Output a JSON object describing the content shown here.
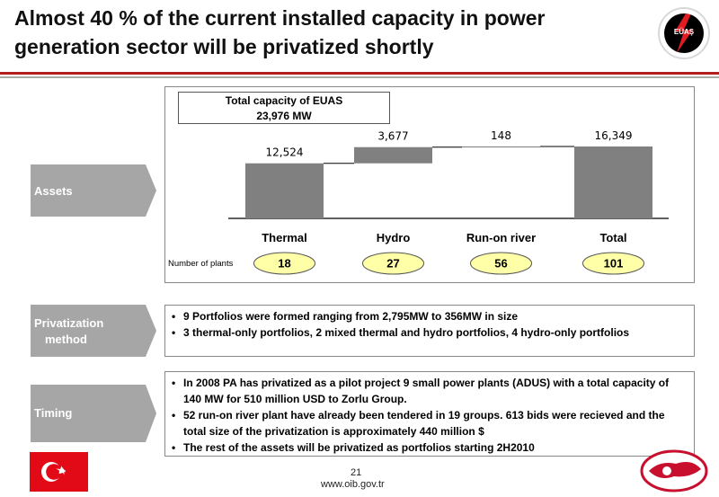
{
  "header": {
    "title_line1": "Almost 40 % of the current installed capacity in power",
    "title_line2": "generation sector will be privatized shortly",
    "logo_text": "EÜAŞ"
  },
  "sections": {
    "assets": "Assets",
    "privatization_line1": "Privatization",
    "privatization_line2": "method",
    "timing": "Timing"
  },
  "total_box": {
    "line1": "Total capacity of EUAS",
    "line2": "23,976 MW"
  },
  "chart_data": {
    "type": "bar",
    "categories": [
      "Thermal",
      "Hydro",
      "Run-on river",
      "Total"
    ],
    "values": [
      12524,
      3677,
      148,
      16349
    ],
    "value_labels": [
      "12,524",
      "3,677",
      "148",
      "16,349"
    ],
    "waterfall": true,
    "title": "",
    "xlabel": "",
    "ylabel": "",
    "ylim": [
      0,
      18000
    ],
    "grid": false,
    "colors": [
      "#808080",
      "#808080",
      "#808080",
      "#808080"
    ]
  },
  "plants": {
    "label": "Number of plants",
    "counts": [
      "18",
      "27",
      "56",
      "101"
    ]
  },
  "privatization_bullets": [
    "9 Portfolios were formed ranging from 2,795MW to 356MW in size",
    "3 thermal-only portfolios, 2 mixed thermal and hydro portfolios, 4 hydro-only portfolios"
  ],
  "timing_bullets": [
    "In 2008 PA has privatized as a pilot project 9 small power plants (ADUS) with a total capacity of 140 MW for 510 million USD to Zorlu Group.",
    "52 run-on river plant have already been tendered in 19 groups. 613 bids were recieved and the total size of the privatization is approximately 440 million $",
    "The rest of the assets will be privatized as portfolios starting 2H2010"
  ],
  "footer": {
    "page_number": "21",
    "url": "www.oib.gov.tr"
  },
  "colors": {
    "accent_red": "#b01e1e",
    "bar_gray": "#808080",
    "tab_gray": "#a6a6a6",
    "plant_oval": "#ffffa8"
  }
}
